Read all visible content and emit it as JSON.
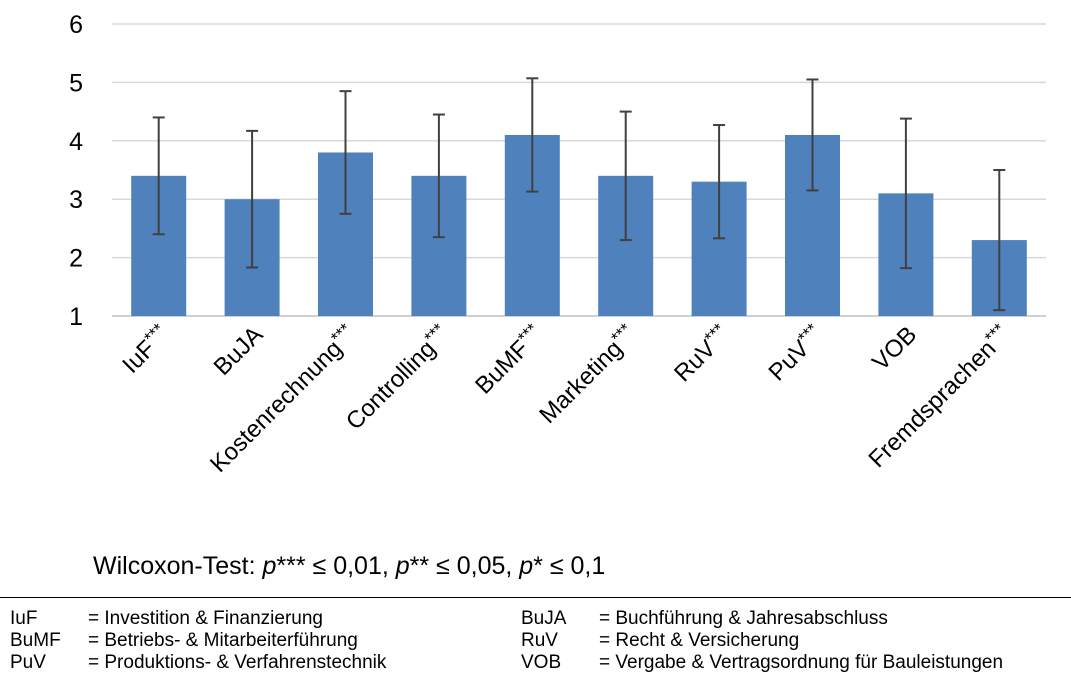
{
  "chart_data": {
    "type": "bar",
    "categories": [
      "IuF***",
      "BuJA",
      "Kostenrechnung***",
      "Controlling***",
      "BuMF***",
      "Marketing***",
      "RuV***",
      "PuV***",
      "VOB",
      "Fremdsprachen***"
    ],
    "values": [
      3.4,
      3.0,
      3.8,
      3.4,
      4.1,
      3.4,
      3.3,
      4.1,
      3.1,
      2.3
    ],
    "error": [
      1.0,
      1.17,
      1.05,
      1.05,
      0.97,
      1.1,
      0.97,
      0.95,
      1.28,
      1.2
    ],
    "ylim": [
      1,
      6
    ],
    "yticks": [
      "1",
      "2",
      "3",
      "4",
      "5",
      "6"
    ],
    "grid": true,
    "bar_color": "#4F81BD",
    "error_color": "#404040",
    "title": "",
    "xlabel": "",
    "ylabel": ""
  },
  "note": {
    "prefix": "Wilcoxon-Test: ",
    "p1": "p",
    "s1": "*** ≤ 0,01, ",
    "p2": "p",
    "s2": "** ≤ 0,05, ",
    "p3": "p",
    "s3": "* ≤ 0,1"
  },
  "legend": {
    "left": [
      {
        "abbr": "IuF",
        "text": "= Investition & Finanzierung"
      },
      {
        "abbr": "BuMF",
        "text": "= Betriebs- & Mitarbeiterführung"
      },
      {
        "abbr": "PuV",
        "text": "= Produktions- & Verfahrenstechnik"
      }
    ],
    "right": [
      {
        "abbr": "BuJA",
        "text": "= Buchführung & Jahresabschluss"
      },
      {
        "abbr": "RuV",
        "text": "= Recht & Versicherung"
      },
      {
        "abbr": "VOB",
        "text": "= Vergabe & Vertragsordnung für Bauleistungen"
      }
    ]
  }
}
